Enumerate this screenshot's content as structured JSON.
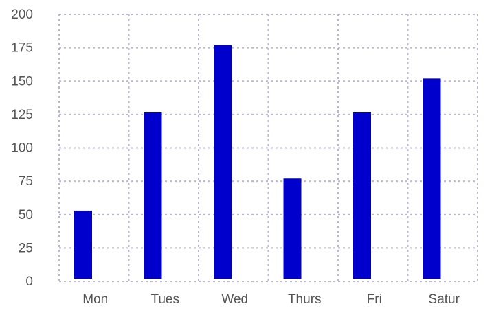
{
  "chart_data": {
    "type": "bar",
    "categories": [
      "Mon",
      "Tues",
      "Wed",
      "Thurs",
      "Fri",
      "Satur"
    ],
    "values": [
      53,
      127,
      177,
      77,
      127,
      152
    ],
    "ylim": [
      0,
      200
    ],
    "yticks": [
      0,
      25,
      50,
      75,
      100,
      125,
      150,
      175,
      200
    ],
    "grid": true,
    "bar_color": "#0000cc",
    "grid_color": "#b8b8d4",
    "title": "",
    "xlabel": "",
    "ylabel": ""
  }
}
